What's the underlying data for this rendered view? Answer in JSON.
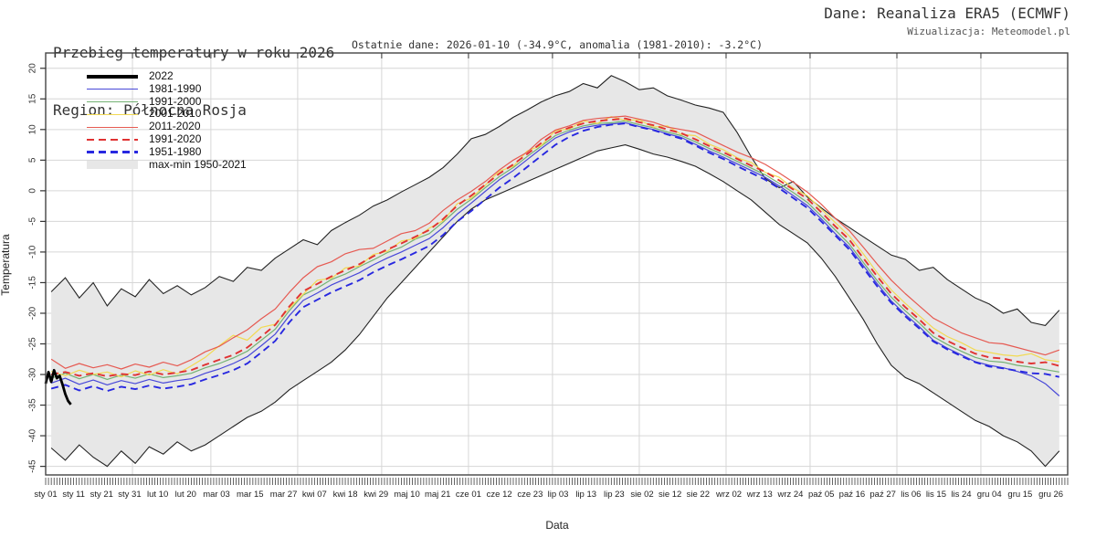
{
  "header": {
    "title": "Przebieg temperatury w roku 2026",
    "region": "Region: Północna Rosja",
    "source": "Dane: Reanaliza ERA5 (ECMWF)",
    "credit": "Wizualizacja: Meteomodel.pl",
    "subtitle": "Ostatnie dane: 2026-01-10 (-34.9°C, anomalia (1981-2010): -3.2°C)"
  },
  "axes": {
    "xlabel": "Data",
    "ylabel": "Temperatura"
  },
  "legend": {
    "items": [
      {
        "label": "2022",
        "type": "thick",
        "color": "#000000"
      },
      {
        "label": "1981-1990",
        "type": "solid",
        "color": "#4848d8"
      },
      {
        "label": "1991-2000",
        "type": "solid",
        "color": "#74b274"
      },
      {
        "label": "2001-2010",
        "type": "solid",
        "color": "#f2da52"
      },
      {
        "label": "2011-2020",
        "type": "solid",
        "color": "#e65a52"
      },
      {
        "label": "1991-2020",
        "type": "dashed",
        "color": "#e03232"
      },
      {
        "label": "1951-1980",
        "type": "dashed",
        "color": "#2828e0"
      },
      {
        "label": "max-min 1950-2021",
        "type": "band",
        "color": "#e7e7e7"
      }
    ]
  },
  "chart_data": {
    "type": "line",
    "title": "Przebieg temperatury w roku 2026",
    "xlabel": "Data",
    "ylabel": "Temperatura",
    "ylim": [
      -46.4,
      22.5
    ],
    "yticks": [
      20,
      15,
      10,
      5,
      0,
      -5,
      -10,
      -15,
      -20,
      -25,
      -30,
      -35,
      -40,
      -45
    ],
    "grid": true,
    "legend_position": "top-left",
    "month_gridline_days": [
      32,
      60,
      91,
      121,
      152,
      182,
      213,
      244,
      274,
      305,
      335
    ],
    "x_tick_labels": [
      [
        "sty 01",
        1
      ],
      [
        "sty 11",
        11
      ],
      [
        "sty 21",
        21
      ],
      [
        "sty 31",
        31
      ],
      [
        "lut 10",
        41
      ],
      [
        "lut 20",
        51
      ],
      [
        "mar 03",
        62
      ],
      [
        "mar 15",
        74
      ],
      [
        "mar 27",
        86
      ],
      [
        "kwi 07",
        97
      ],
      [
        "kwi 18",
        108
      ],
      [
        "kwi 29",
        119
      ],
      [
        "maj 10",
        130
      ],
      [
        "maj 21",
        141
      ],
      [
        "cze 01",
        152
      ],
      [
        "cze 12",
        163
      ],
      [
        "cze 23",
        174
      ],
      [
        "lip 03",
        184
      ],
      [
        "lip 13",
        194
      ],
      [
        "lip 23",
        204
      ],
      [
        "sie 02",
        214
      ],
      [
        "sie 12",
        224
      ],
      [
        "sie 22",
        234
      ],
      [
        "wrz 02",
        245
      ],
      [
        "wrz 13",
        256
      ],
      [
        "wrz 24",
        267
      ],
      [
        "paź 05",
        278
      ],
      [
        "paź 16",
        289
      ],
      [
        "paź 27",
        300
      ],
      [
        "lis 06",
        310
      ],
      [
        "lis 15",
        319
      ],
      [
        "lis 24",
        328
      ],
      [
        "gru 04",
        338
      ],
      [
        "gru 15",
        349
      ],
      [
        "gru 26",
        360
      ]
    ],
    "x_days": [
      3,
      8,
      13,
      18,
      23,
      28,
      33,
      38,
      43,
      48,
      53,
      58,
      63,
      68,
      73,
      78,
      83,
      88,
      93,
      98,
      103,
      108,
      113,
      118,
      123,
      128,
      133,
      138,
      143,
      148,
      153,
      158,
      163,
      168,
      173,
      178,
      183,
      188,
      193,
      198,
      203,
      208,
      213,
      218,
      223,
      228,
      233,
      238,
      243,
      248,
      253,
      258,
      263,
      268,
      273,
      278,
      283,
      288,
      293,
      298,
      303,
      308,
      313,
      318,
      323,
      328,
      333,
      338,
      343,
      348,
      353,
      358,
      363
    ],
    "band": {
      "name": "max-min 1950-2021",
      "fill": "#e7e7e7",
      "edge": "#222222",
      "top": [
        -16.5,
        -14.2,
        -17.5,
        -15.0,
        -18.8,
        -16.0,
        -17.3,
        -14.5,
        -16.8,
        -15.5,
        -17.0,
        -15.8,
        -14.0,
        -14.8,
        -12.5,
        -13.0,
        -11.0,
        -9.5,
        -8.0,
        -8.8,
        -6.5,
        -5.2,
        -4.0,
        -2.5,
        -1.5,
        -0.2,
        1.0,
        2.2,
        3.8,
        6.0,
        8.5,
        9.2,
        10.5,
        12.0,
        13.2,
        14.5,
        15.5,
        16.2,
        17.5,
        16.8,
        18.8,
        17.8,
        16.5,
        16.8,
        15.5,
        14.8,
        14.0,
        13.5,
        12.8,
        9.5,
        5.5,
        2.0,
        0.5,
        1.5,
        -1.0,
        -2.8,
        -4.5,
        -6.0,
        -7.5,
        -9.0,
        -10.5,
        -11.2,
        -13.0,
        -12.5,
        -14.5,
        -16.0,
        -17.5,
        -18.5,
        -20.0,
        -19.3,
        -21.5,
        -22.0,
        -19.5
      ],
      "bottom": [
        -42.0,
        -44.0,
        -41.5,
        -43.5,
        -45.0,
        -42.5,
        -44.5,
        -41.8,
        -43.0,
        -41.0,
        -42.5,
        -41.5,
        -40.0,
        -38.5,
        -37.0,
        -36.0,
        -34.5,
        -32.5,
        -31.0,
        -29.5,
        -28.0,
        -26.0,
        -23.5,
        -20.5,
        -17.5,
        -15.0,
        -12.5,
        -10.0,
        -7.5,
        -5.0,
        -3.0,
        -1.5,
        -0.5,
        0.5,
        1.5,
        2.5,
        3.5,
        4.5,
        5.5,
        6.5,
        7.0,
        7.5,
        6.8,
        6.0,
        5.5,
        4.8,
        4.0,
        2.8,
        1.5,
        0.0,
        -1.5,
        -3.5,
        -5.5,
        -7.0,
        -8.5,
        -11.0,
        -14.0,
        -17.5,
        -21.0,
        -25.0,
        -28.5,
        -30.5,
        -31.5,
        -33.0,
        -34.5,
        -36.0,
        -37.5,
        -38.5,
        -40.0,
        -41.0,
        -42.5,
        -45.0,
        -42.5
      ]
    },
    "series": [
      {
        "name": "1981-1990",
        "color": "#4848d8",
        "style": "solid",
        "width": 1.2,
        "values": [
          -31.4,
          -30.6,
          -31.6,
          -30.9,
          -31.7,
          -31.0,
          -31.5,
          -30.8,
          -31.4,
          -31.0,
          -30.7,
          -29.8,
          -29.1,
          -28.2,
          -27.1,
          -25.3,
          -23.4,
          -20.4,
          -17.9,
          -16.7,
          -15.4,
          -14.4,
          -13.4,
          -12.1,
          -11.0,
          -10.0,
          -8.9,
          -7.8,
          -6.0,
          -3.8,
          -2.0,
          -0.1,
          1.8,
          3.3,
          5.1,
          6.9,
          8.6,
          9.6,
          10.3,
          10.7,
          10.9,
          11.1,
          10.5,
          10.0,
          9.3,
          8.7,
          7.6,
          6.5,
          5.5,
          4.4,
          3.3,
          2.2,
          0.8,
          -0.8,
          -2.4,
          -4.6,
          -7.0,
          -9.2,
          -12.2,
          -15.2,
          -18.0,
          -20.2,
          -22.2,
          -24.4,
          -25.7,
          -26.8,
          -27.9,
          -28.5,
          -28.9,
          -29.5,
          -30.2,
          -31.5,
          -33.5
        ]
      },
      {
        "name": "1991-2000",
        "color": "#74b274",
        "style": "solid",
        "width": 1.2,
        "values": [
          -30.6,
          -29.8,
          -30.7,
          -30.0,
          -30.8,
          -30.1,
          -30.6,
          -29.9,
          -30.5,
          -30.2,
          -29.8,
          -28.9,
          -28.2,
          -27.3,
          -26.2,
          -24.4,
          -22.6,
          -19.6,
          -17.0,
          -15.9,
          -14.5,
          -13.6,
          -12.4,
          -11.3,
          -10.1,
          -9.2,
          -7.9,
          -7.0,
          -5.1,
          -3.0,
          -1.4,
          0.5,
          2.3,
          3.8,
          5.6,
          7.3,
          9.0,
          9.9,
          10.6,
          11.0,
          11.1,
          11.4,
          10.8,
          10.3,
          9.6,
          9.0,
          8.0,
          6.9,
          5.9,
          4.8,
          3.7,
          2.6,
          1.2,
          -0.3,
          -1.9,
          -4.1,
          -6.4,
          -8.7,
          -11.7,
          -14.7,
          -17.4,
          -19.6,
          -21.6,
          -23.8,
          -25.1,
          -26.2,
          -27.2,
          -27.8,
          -28.0,
          -28.5,
          -28.8,
          -29.2,
          -29.6
        ]
      },
      {
        "name": "2001-2010",
        "color": "#f2da52",
        "style": "solid",
        "width": 1.2,
        "values": [
          -29.5,
          -30.2,
          -29.3,
          -30.0,
          -29.6,
          -30.4,
          -29.4,
          -30.1,
          -29.2,
          -29.9,
          -28.6,
          -27.2,
          -25.3,
          -23.6,
          -24.4,
          -22.3,
          -21.8,
          -19.2,
          -16.9,
          -14.6,
          -14.3,
          -12.6,
          -12.3,
          -10.4,
          -9.9,
          -8.2,
          -7.8,
          -6.1,
          -4.9,
          -2.1,
          -1.2,
          0.9,
          3.2,
          4.0,
          6.5,
          7.4,
          9.8,
          10.1,
          11.4,
          11.0,
          12.1,
          11.5,
          11.6,
          10.4,
          10.6,
          9.2,
          9.0,
          7.6,
          6.7,
          5.4,
          4.6,
          3.0,
          2.2,
          0.4,
          -0.8,
          -3.0,
          -5.2,
          -7.4,
          -10.3,
          -13.4,
          -16.2,
          -18.4,
          -20.4,
          -22.4,
          -23.8,
          -24.8,
          -26.0,
          -26.4,
          -26.8,
          -27.0,
          -26.6,
          -27.6,
          -27.9
        ]
      },
      {
        "name": "2011-2020",
        "color": "#e65a52",
        "style": "solid",
        "width": 1.2,
        "values": [
          -27.5,
          -29.0,
          -28.2,
          -28.9,
          -28.4,
          -29.1,
          -28.3,
          -28.8,
          -28.0,
          -28.6,
          -27.6,
          -26.3,
          -25.4,
          -24.0,
          -22.7,
          -20.9,
          -19.3,
          -16.6,
          -14.2,
          -12.4,
          -11.6,
          -10.3,
          -9.6,
          -9.4,
          -8.2,
          -7.0,
          -6.5,
          -5.3,
          -3.2,
          -1.5,
          -0.1,
          1.5,
          3.4,
          5.0,
          6.3,
          8.4,
          9.9,
          10.6,
          11.5,
          11.8,
          12.0,
          12.2,
          11.7,
          11.2,
          10.4,
          10.0,
          9.6,
          8.5,
          7.4,
          6.3,
          5.4,
          4.3,
          2.9,
          1.4,
          -0.2,
          -2.2,
          -4.5,
          -6.5,
          -9.2,
          -12.0,
          -14.6,
          -16.8,
          -18.8,
          -20.8,
          -22.0,
          -23.2,
          -24.0,
          -24.8,
          -25.0,
          -25.6,
          -26.2,
          -26.8,
          -26.0
        ]
      },
      {
        "name": "1991-2020",
        "color": "#e03232",
        "style": "dashed",
        "width": 1.9,
        "values": [
          -30.0,
          -29.6,
          -30.2,
          -29.8,
          -30.3,
          -29.9,
          -30.1,
          -29.5,
          -30.0,
          -29.7,
          -29.3,
          -28.4,
          -27.6,
          -26.8,
          -25.6,
          -23.8,
          -21.9,
          -18.9,
          -16.4,
          -15.2,
          -14.0,
          -13.0,
          -12.0,
          -10.7,
          -9.6,
          -8.6,
          -7.5,
          -6.4,
          -4.6,
          -2.4,
          -0.8,
          1.0,
          2.8,
          4.3,
          6.0,
          7.8,
          9.4,
          10.3,
          11.0,
          11.4,
          11.6,
          11.8,
          11.2,
          10.7,
          10.0,
          9.4,
          8.4,
          7.3,
          6.3,
          5.2,
          4.1,
          3.1,
          1.7,
          0.2,
          -1.3,
          -3.5,
          -5.8,
          -8.0,
          -11.0,
          -14.0,
          -16.8,
          -19.0,
          -21.0,
          -23.2,
          -24.5,
          -25.6,
          -26.6,
          -27.2,
          -27.4,
          -27.9,
          -28.2,
          -28.0,
          -28.6
        ]
      },
      {
        "name": "1951-1980",
        "color": "#2828e0",
        "style": "dashed",
        "width": 1.9,
        "values": [
          -32.3,
          -31.7,
          -32.6,
          -31.9,
          -32.7,
          -32.0,
          -32.4,
          -31.8,
          -32.3,
          -32.0,
          -31.6,
          -30.8,
          -30.1,
          -29.3,
          -28.2,
          -26.4,
          -24.5,
          -21.5,
          -19.0,
          -17.8,
          -16.6,
          -15.6,
          -14.6,
          -13.3,
          -12.2,
          -11.2,
          -10.1,
          -9.0,
          -7.2,
          -5.0,
          -3.3,
          -1.4,
          0.5,
          2.1,
          3.9,
          5.7,
          7.5,
          8.8,
          9.8,
          10.4,
          10.8,
          11.0,
          10.4,
          9.9,
          9.2,
          8.5,
          7.4,
          6.2,
          5.2,
          4.0,
          2.9,
          1.8,
          0.4,
          -1.2,
          -2.8,
          -5.0,
          -7.3,
          -9.6,
          -12.6,
          -15.6,
          -18.3,
          -20.5,
          -22.5,
          -24.6,
          -25.9,
          -27.0,
          -28.0,
          -28.7,
          -29.0,
          -29.4,
          -29.8,
          -29.9,
          -30.4
        ]
      },
      {
        "name": "2022",
        "color": "#000000",
        "style": "solid",
        "width": 2.8,
        "x": [
          1,
          2,
          3,
          4,
          5,
          6,
          7,
          8,
          9,
          10
        ],
        "values": [
          -31.5,
          -29.6,
          -31.2,
          -29.3,
          -30.6,
          -30.2,
          -31.6,
          -33.2,
          -34.3,
          -34.9
        ]
      }
    ],
    "colors": {
      "grid": "#d6d6d6",
      "border": "#444444",
      "tick": "#333333"
    }
  }
}
